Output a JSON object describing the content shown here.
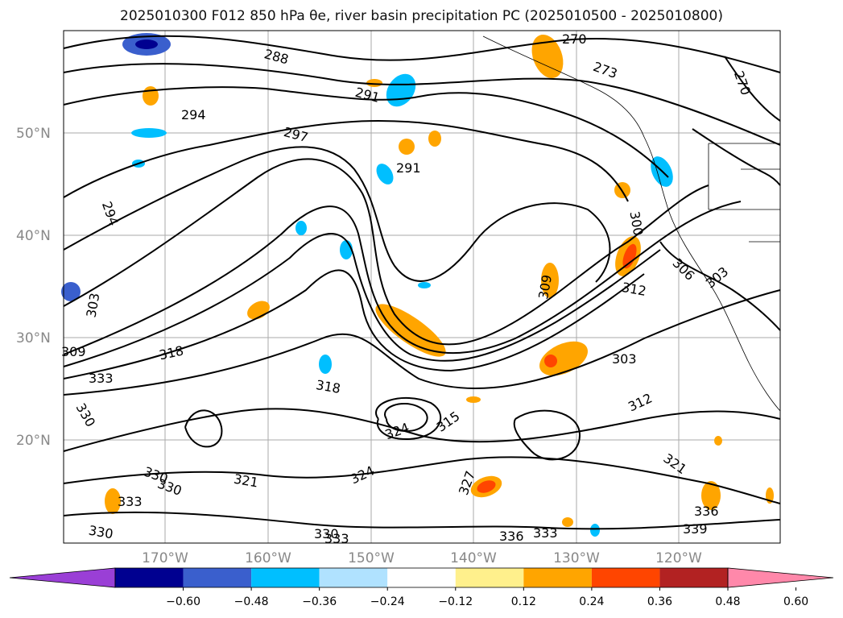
{
  "title": "2025010300 F012 850 hPa θe, river basin precipitation PC (2025010500 - 2025010800)",
  "lat_labels": [
    "50°N",
    "40°N",
    "30°N",
    "20°N"
  ],
  "lon_labels": [
    "170°W",
    "160°W",
    "150°W",
    "140°W",
    "130°W",
    "120°W"
  ],
  "contour_labels": [
    "270",
    "273",
    "270",
    "288",
    "291",
    "294",
    "297",
    "291",
    "294",
    "300",
    "303",
    "306",
    "309",
    "303",
    "309",
    "312",
    "318",
    "318",
    "303",
    "312",
    "315",
    "321",
    "324",
    "324",
    "327",
    "321",
    "330",
    "330",
    "330",
    "330",
    "333",
    "333",
    "336",
    "339",
    "336",
    "330",
    "333",
    "333"
  ],
  "colorbar": {
    "ticks": [
      "−0.60",
      "−0.48",
      "−0.36",
      "−0.24",
      "−0.12",
      "0.12",
      "0.24",
      "0.36",
      "0.48",
      "0.60"
    ],
    "colors": [
      "#9a3fd6",
      "#000090",
      "#3a5fcd",
      "#00bfff",
      "#b0e2ff",
      "#ffffff",
      "#fff08c",
      "#ffa500",
      "#ff4500",
      "#b22222",
      "#ff88aa"
    ]
  }
}
